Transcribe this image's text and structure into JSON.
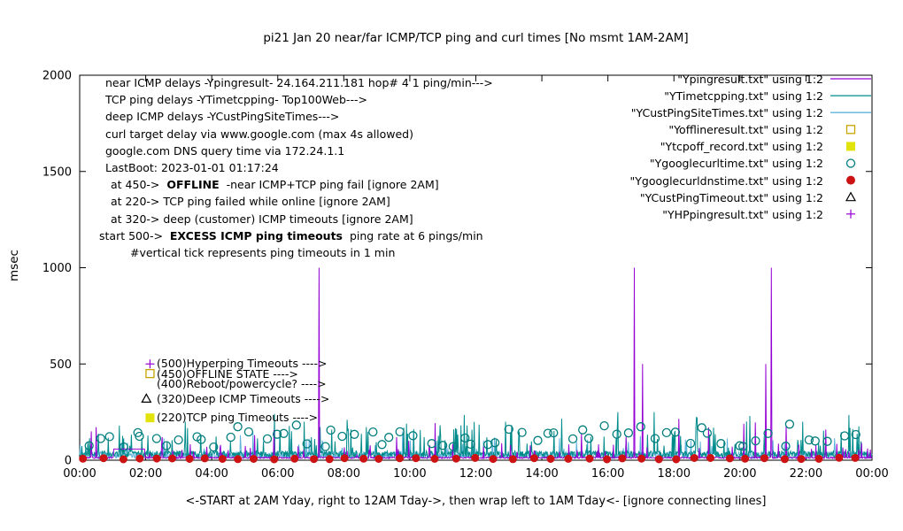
{
  "title": "pi21 Jan 20  near/far ICMP/TCP ping and curl times [No msmt 1AM-2AM]",
  "ylabel": "msec",
  "xlabel": "<-START at 2AM Yday, right to 12AM Tday->, then wrap left to 1AM Tday<- [ignore connecting lines]",
  "info": {
    "lines": [
      {
        "text": "near ICMP delays -Ypingresult- 24.164.211.181 hop# 4 1 ping/min--->"
      },
      {
        "text": "TCP ping delays -YTimetcpping- Top100Web--->"
      },
      {
        "text": "deep ICMP delays -YCustPingSiteTimes--->"
      },
      {
        "text": "curl target delay via www.google.com (max 4s allowed)"
      },
      {
        "text": "google.com DNS query time via 172.24.1.1"
      },
      {
        "text": "LastBoot: 2023-01-01 01:17:24"
      },
      {
        "pre": "at 450->  ",
        "bold": "OFFLINE",
        "post": "  -near ICMP+TCP ping fail [ignore 2AM]"
      },
      {
        "text": "at 220-> TCP ping failed while online [ignore 2AM]"
      },
      {
        "text": "at 320-> deep (customer) ICMP timeouts [ignore 2AM]"
      },
      {
        "pre": "start 500->  ",
        "bold": "EXCESS ICMP ping timeouts",
        "post": "  ping rate at 6 pings/min"
      },
      {
        "text": "#vertical tick represents ping timeouts in 1 min"
      }
    ]
  },
  "plot_labels": [
    {
      "text": "(500)Hyperping Timeouts ---->"
    },
    {
      "text": "(450)OFFLINE STATE ---->"
    },
    {
      "text": "(400)Reboot/powercycle? ---->"
    },
    {
      "text": "(320)Deep ICMP Timeouts ---->"
    },
    {
      "text": "(220)TCP ping Timeouts ---->"
    }
  ],
  "legend": {
    "entries": [
      {
        "label": "\"Ypingresult.txt\" using 1:2",
        "marker": "line",
        "color": "#9400d3"
      },
      {
        "label": "\"YTimetcpping.txt\" using 1:2",
        "marker": "line",
        "color": "#008b8b"
      },
      {
        "label": "\"YCustPingSiteTimes.txt\" using 1:2",
        "marker": "line",
        "color": "#5fb4dc"
      },
      {
        "label": "\"Yofflineresult.txt\" using 1:2",
        "marker": "open-square",
        "color": "#c8a400"
      },
      {
        "label": "\"Ytcpoff_record.txt\" using 1:2",
        "marker": "filled-square",
        "color": "#e3e30c"
      },
      {
        "label": "\"Ygooglecurltime.txt\" using 1:2",
        "marker": "open-circle",
        "color": "#007d7d"
      },
      {
        "label": "\"Ygooglecurldnstime.txt\" using 1:2",
        "marker": "filled-circle",
        "color": "#cc1212"
      },
      {
        "label": "\"YCustPingTimeout.txt\" using 1:2",
        "marker": "open-triangle",
        "color": "#000000"
      },
      {
        "label": "\"YHPpingresult.txt\" using 1:2",
        "marker": "plus",
        "color": "#9400d3"
      }
    ]
  },
  "chart_data": {
    "type": "line",
    "title": "pi21 Jan 20  near/far ICMP/TCP ping and curl times [No msmt 1AM-2AM]",
    "x_axis": {
      "label": "<-START at 2AM Yday, right to 12AM Tday->, then wrap left to 1AM Tday<- [ignore connecting lines]",
      "tick_labels": [
        "00:00",
        "02:00",
        "04:00",
        "06:00",
        "08:00",
        "10:00",
        "12:00",
        "14:00",
        "16:00",
        "18:00",
        "20:00",
        "22:00",
        "00:00"
      ],
      "tick_hours": [
        0,
        2,
        4,
        6,
        8,
        10,
        12,
        14,
        16,
        18,
        20,
        22,
        24
      ],
      "range_hours": [
        0,
        24
      ]
    },
    "y_axis": {
      "label": "msec",
      "tick_labels": [
        "0",
        "500",
        "1000",
        "1500",
        "2000"
      ],
      "tick_values": [
        0,
        500,
        1000,
        1500,
        2000
      ],
      "range": [
        0,
        2000
      ]
    },
    "series": [
      {
        "name": "YCustPingSiteTimes",
        "style": "line",
        "color": "#5fb4dc",
        "baseline": [
          8,
          45
        ],
        "tick_prob": 0.035,
        "tick_range": [
          55,
          115
        ],
        "medium_prob": 0.003,
        "medium_range": [
          115,
          155
        ],
        "spikes": [],
        "seed": 33
      },
      {
        "name": "YTimetcpping",
        "style": "line",
        "color": "#008b8b",
        "baseline": [
          14,
          48
        ],
        "tick_prob": 0.06,
        "tick_range": [
          60,
          185
        ],
        "medium_prob": 0.004,
        "medium_range": [
          185,
          230
        ],
        "spikes": [
          [
            1.2,
            180
          ],
          [
            3.2,
            200
          ],
          [
            5.9,
            240
          ],
          [
            6.8,
            200
          ],
          [
            8.1,
            210
          ],
          [
            9.9,
            190
          ],
          [
            11.65,
            235
          ],
          [
            12.9,
            200
          ],
          [
            14.6,
            215
          ],
          [
            16.3,
            250
          ],
          [
            17.4,
            250
          ],
          [
            18.7,
            220
          ],
          [
            20.3,
            230
          ],
          [
            21.9,
            200
          ],
          [
            23.3,
            235
          ]
        ],
        "seed": 22
      },
      {
        "name": "Ypingresult",
        "style": "line",
        "color": "#9400d3",
        "baseline": [
          9,
          17
        ],
        "tick_prob": 0.045,
        "tick_range": [
          28,
          90
        ],
        "medium_prob": 0.004,
        "medium_range": [
          95,
          200
        ],
        "spikes": [
          [
            0.35,
            150
          ],
          [
            2.5,
            120
          ],
          [
            5.3,
            130
          ],
          [
            7.25,
            1000
          ],
          [
            9.6,
            120
          ],
          [
            15.2,
            140
          ],
          [
            16.8,
            1000
          ],
          [
            17.05,
            500
          ],
          [
            18.15,
            215
          ],
          [
            19.05,
            170
          ],
          [
            20.78,
            500
          ],
          [
            20.95,
            1000
          ],
          [
            21.4,
            180
          ],
          [
            22.6,
            160
          ]
        ],
        "flat_segment": {
          "from": 1.02,
          "to": 1.97,
          "value": 58
        },
        "seed": 11
      },
      {
        "name": "Ygooglecurltime",
        "style": "open-circle",
        "color": "#007d7d",
        "radius": 4.5,
        "gen": {
          "count": 66,
          "y_base": [
            68,
            158
          ],
          "y_high": [
            150,
            188
          ],
          "high_prob": 0.12,
          "seed": 44
        }
      },
      {
        "name": "Ygooglecurldnstime",
        "style": "filled-circle",
        "color": "#cc1212",
        "radius": 4,
        "gen": {
          "interval": 0.55,
          "y_base": [
            4,
            13
          ],
          "seed": 55
        }
      }
    ],
    "plot_markers": [
      {
        "marker": "plus",
        "color": "#9400d3",
        "hour": 2.13,
        "value": 500
      },
      {
        "marker": "open-square",
        "color": "#c8a400",
        "hour": 2.13,
        "value": 450
      },
      {
        "marker": "open-triangle",
        "color": "#000000",
        "hour": 2.02,
        "value": 320
      },
      {
        "marker": "filled-square",
        "color": "#e3e30c",
        "hour": 2.13,
        "value": 220
      }
    ]
  }
}
